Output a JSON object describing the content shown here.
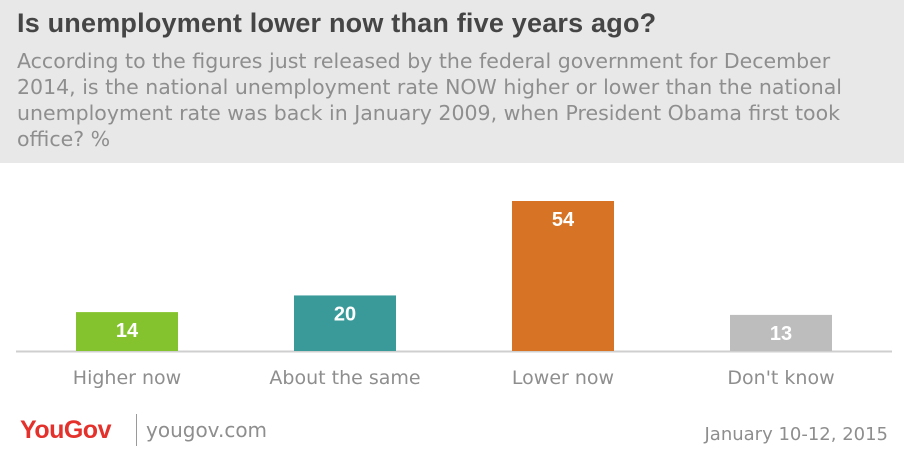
{
  "header": {
    "title": "Is unemployment lower now than five years ago?",
    "subtitle": "According to the figures just released by the federal government for December 2014, is the national unemployment rate NOW higher or lower than the national unemployment rate was back in January 2009, when President Obama first took office? %"
  },
  "chart_data": {
    "type": "bar",
    "categories": [
      "Higher now",
      "About the same",
      "Lower now",
      "Don't know"
    ],
    "values": [
      14,
      20,
      54,
      13
    ],
    "colors": [
      "#84c32d",
      "#3a9a9a",
      "#d67324",
      "#bdbdbd"
    ],
    "title": "",
    "xlabel": "",
    "ylabel": "",
    "ylim": [
      0,
      54
    ],
    "grid": false,
    "legend": "none"
  },
  "footer": {
    "brand": "YouGov",
    "site": "yougov.com",
    "date": "January 10-12, 2015"
  }
}
